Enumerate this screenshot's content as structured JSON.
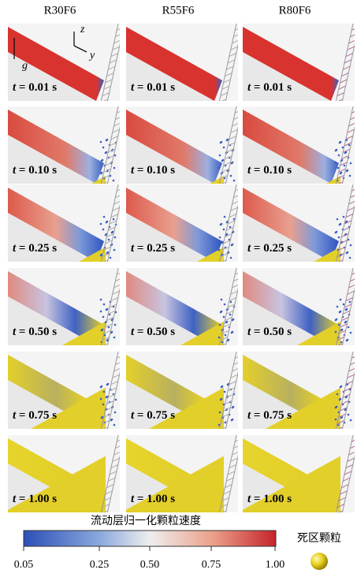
{
  "columns": [
    "R30F6",
    "R55F6",
    "R80F6"
  ],
  "rows": [
    {
      "var": "t",
      "rest": " = 0.01 s"
    },
    {
      "var": "t",
      "rest": " = 0.10 s"
    },
    {
      "var": "t",
      "rest": " = 0.25 s"
    },
    {
      "var": "t",
      "rest": " = 0.50 s"
    },
    {
      "var": "t",
      "rest": " = 0.75 s"
    },
    {
      "var": "t",
      "rest": " = 1.00 s"
    }
  ],
  "axes": {
    "z": "z",
    "y": "y",
    "g": "g"
  },
  "colorbar": {
    "title": "流动层归一化颗粒速度",
    "ticks": [
      "0.05",
      "0.25",
      "0.50",
      "0.75",
      "1.00"
    ]
  },
  "dead_zone": "死区颗粒"
}
